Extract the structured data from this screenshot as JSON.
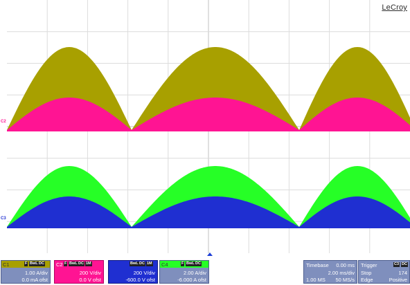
{
  "brand": "LeCroy",
  "colors": {
    "c1": "#a8a000",
    "c2": "#ff1493",
    "c3": "#1f2fd1",
    "c4": "#26ff26",
    "descriptor_bg": "#7f8fbd"
  },
  "channels": [
    {
      "label": "C1",
      "badges": [
        "F",
        "BwL",
        "DC"
      ],
      "scale": "1.00 A/div",
      "offset": "0.0 mA ofst"
    },
    {
      "label": "C2",
      "badges": [
        "F",
        "BwL",
        "DC",
        "1M"
      ],
      "scale": "200 V/div",
      "offset": "0.0 V ofst"
    },
    {
      "label": "C3",
      "badges": [
        "BwL",
        "DC",
        "1M"
      ],
      "scale": "200 V/div",
      "offset": "-600.0 V ofst"
    },
    {
      "label": "C4",
      "badges": [
        "F",
        "BwL",
        "DC"
      ],
      "scale": "2.00 A/div",
      "offset": "-6.000 A ofst"
    }
  ],
  "markers": {
    "c2": "C2",
    "c3": "C3"
  },
  "timebase": {
    "label": "Timebase",
    "delay": "0.00 ms",
    "scale": "2.00 ms/div",
    "samples": "1.00 MS",
    "rate": "50 MS/s"
  },
  "trigger": {
    "label": "Trigger",
    "source_badges": [
      "C3",
      "DC"
    ],
    "mode": "Stop",
    "level": "174",
    "type": "Edge",
    "slope": "Positive"
  }
}
